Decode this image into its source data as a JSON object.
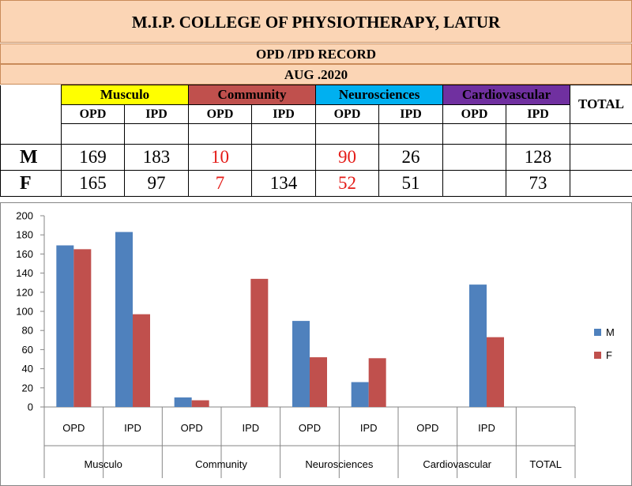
{
  "title": "M.I.P. COLLEGE OF PHYSIOTHERAPY, LATUR",
  "subtitle": "OPD /IPD RECORD",
  "period": "AUG .2020",
  "table": {
    "categories": [
      "Musculo",
      "Community",
      "Neurosciences",
      "Cardiovascular"
    ],
    "total_label": "TOTAL",
    "sub_labels": [
      "OPD",
      "IPD",
      "OPD",
      "IPD",
      "OPD",
      "IPD",
      "OPD",
      "IPD"
    ],
    "rows": [
      {
        "label": "M",
        "values": [
          "169",
          "183",
          "10",
          "",
          "90",
          "26",
          "",
          "128"
        ]
      },
      {
        "label": "F",
        "values": [
          "165",
          "97",
          "7",
          "134",
          "52",
          "51",
          "",
          "73"
        ]
      }
    ]
  },
  "colors": {
    "series_m": "#4f81bd",
    "series_f": "#c0504d",
    "red_text": "#e41b17"
  },
  "chart_data": {
    "type": "bar",
    "groups": [
      "Musculo",
      "Community",
      "Neurosciences",
      "Cardiovascular",
      "TOTAL"
    ],
    "categories": [
      "OPD",
      "IPD",
      "OPD",
      "IPD",
      "OPD",
      "IPD",
      "OPD",
      "IPD",
      ""
    ],
    "category_groups": [
      0,
      0,
      1,
      1,
      2,
      2,
      3,
      3,
      4
    ],
    "series": [
      {
        "name": "M",
        "values": [
          169,
          183,
          10,
          null,
          90,
          26,
          null,
          128,
          null
        ]
      },
      {
        "name": "F",
        "values": [
          165,
          97,
          7,
          134,
          52,
          51,
          null,
          73,
          null
        ]
      }
    ],
    "y_ticks": [
      "0",
      "20",
      "40",
      "60",
      "80",
      "100",
      "120",
      "140",
      "160",
      "180",
      "200"
    ],
    "ylim": [
      0,
      200
    ],
    "legend_position": "right",
    "grid": false
  }
}
